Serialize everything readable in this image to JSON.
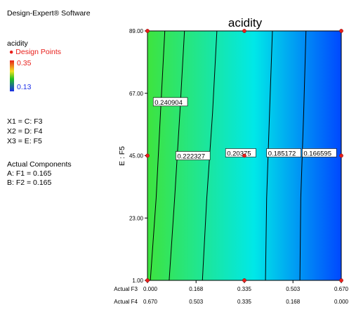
{
  "sidebar": {
    "software": "Design-Expert® Software",
    "response": "acidity",
    "design_points_label": "Design Points",
    "legend_high": "0.35",
    "legend_low": "0.13",
    "x1": "X1 = C: F3",
    "x2": "X2 = D: F4",
    "x3": "X3 = E: F5",
    "actual_components_title": "Actual Components",
    "comp_a": "A: F1 = 0.165",
    "comp_b": "B: F2 = 0.165"
  },
  "chart_data": {
    "type": "contour",
    "title": "acidity",
    "ylabel": "E : F5",
    "x_row1_label": "Actual F3",
    "x_row2_label": "Actual F4",
    "xlim": [
      0.0,
      0.67
    ],
    "ylim": [
      1.0,
      89.0
    ],
    "x_ticks_f3": [
      "0.000",
      "0.168",
      "0.335",
      "0.503",
      "0.670"
    ],
    "x_ticks_f4": [
      "0.670",
      "0.503",
      "0.335",
      "0.168",
      "0.000"
    ],
    "y_ticks": [
      "1.00",
      "23.00",
      "45.00",
      "67.00",
      "89.00"
    ],
    "colors": {
      "low": "#0048ff",
      "mid": "#00e8e8",
      "high": "#3ee43e",
      "point": "#e8201c",
      "line": "#000000"
    },
    "contours": [
      {
        "label": "0.240904",
        "points": [
          [
            0.01,
            1
          ],
          [
            0.03,
            30
          ],
          [
            0.045,
            60
          ],
          [
            0.06,
            89
          ]
        ],
        "label_at": [
          0.02,
          64
        ]
      },
      {
        "label": "0.222327",
        "points": [
          [
            0.075,
            1
          ],
          [
            0.094,
            30
          ],
          [
            0.112,
            60
          ],
          [
            0.128,
            89
          ]
        ],
        "label_at": [
          0.098,
          45
        ]
      },
      {
        "label": "0.20375",
        "points": [
          [
            0.19,
            1
          ],
          [
            0.205,
            30
          ],
          [
            0.225,
            60
          ],
          [
            0.24,
            89
          ]
        ],
        "label_at": [
          0.27,
          46
        ]
      },
      {
        "label": "0.185172",
        "points": [
          [
            0.408,
            1
          ],
          [
            0.412,
            30
          ],
          [
            0.422,
            60
          ],
          [
            0.432,
            89
          ]
        ],
        "label_at": [
          0.412,
          46
        ]
      },
      {
        "label": "0.166595",
        "points": [
          [
            0.527,
            1
          ],
          [
            0.53,
            30
          ],
          [
            0.54,
            60
          ],
          [
            0.548,
            89
          ]
        ],
        "label_at": [
          0.535,
          46
        ]
      }
    ],
    "design_points": [
      [
        0.0,
        1
      ],
      [
        0.335,
        1
      ],
      [
        0.67,
        1
      ],
      [
        0.0,
        45
      ],
      [
        0.335,
        45
      ],
      [
        0.67,
        45
      ],
      [
        0.0,
        89
      ],
      [
        0.335,
        89
      ],
      [
        0.67,
        89
      ]
    ]
  }
}
